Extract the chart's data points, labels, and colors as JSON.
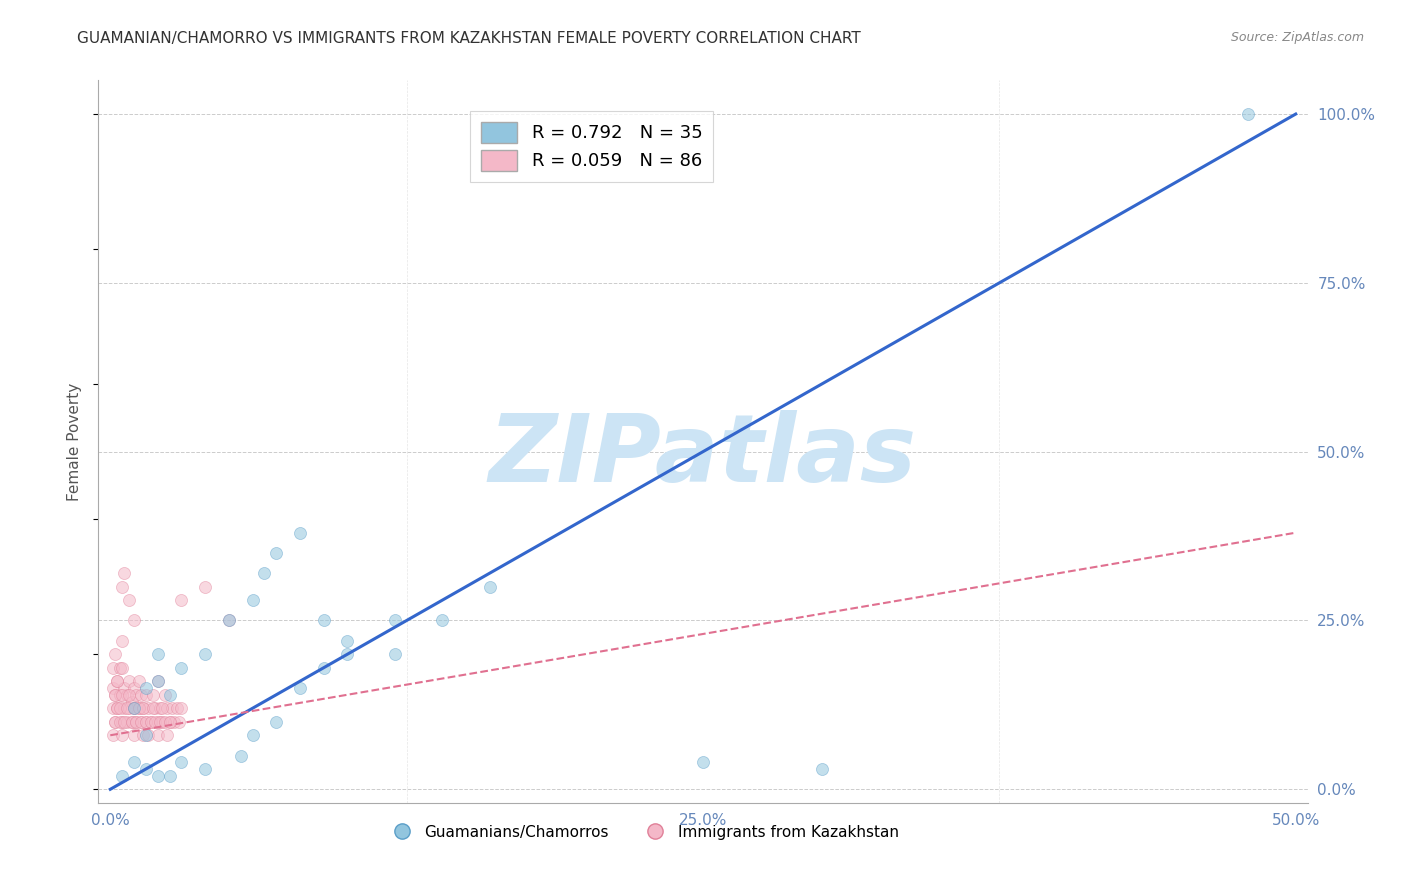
{
  "title": "GUAMANIAN/CHAMORRO VS IMMIGRANTS FROM KAZAKHSTAN FEMALE POVERTY CORRELATION CHART",
  "source": "Source: ZipAtlas.com",
  "ylabel": "Female Poverty",
  "xlim": [
    -0.005,
    0.505
  ],
  "ylim": [
    -0.02,
    1.05
  ],
  "xtick_labels": [
    "0.0%",
    "25.0%",
    "50.0%"
  ],
  "xtick_vals": [
    0.0,
    0.25,
    0.5
  ],
  "ytick_labels": [
    "0.0%",
    "25.0%",
    "50.0%",
    "75.0%",
    "100.0%"
  ],
  "ytick_vals": [
    0.0,
    0.25,
    0.5,
    0.75,
    1.0
  ],
  "group1_label": "Guamanians/Chamorros",
  "group1_color": "#92c5de",
  "group1_edge_color": "#5a9ec8",
  "group1_R": 0.792,
  "group1_N": 35,
  "group2_label": "Immigrants from Kazakhstan",
  "group2_color": "#f4b8c8",
  "group2_edge_color": "#e08098",
  "group2_R": 0.059,
  "group2_N": 86,
  "watermark": "ZIPatlas",
  "watermark_color": "#cce4f5",
  "background_color": "#ffffff",
  "grid_color": "#cccccc",
  "title_fontsize": 11,
  "tick_color": "#6688bb",
  "blue_line_x": [
    0.0,
    0.5
  ],
  "blue_line_y": [
    0.0,
    1.0
  ],
  "pink_line_x": [
    0.0,
    0.5
  ],
  "pink_line_y": [
    0.08,
    0.38
  ],
  "group1_x": [
    0.005,
    0.01,
    0.01,
    0.015,
    0.015,
    0.02,
    0.02,
    0.025,
    0.03,
    0.04,
    0.05,
    0.06,
    0.065,
    0.07,
    0.08,
    0.09,
    0.1,
    0.12,
    0.14,
    0.16,
    0.06,
    0.07,
    0.08,
    0.09,
    0.1,
    0.12,
    0.055,
    0.04,
    0.03,
    0.02,
    0.015,
    0.025,
    0.3,
    0.25,
    0.48
  ],
  "group1_y": [
    0.02,
    0.04,
    0.12,
    0.08,
    0.15,
    0.16,
    0.2,
    0.14,
    0.18,
    0.2,
    0.25,
    0.28,
    0.32,
    0.35,
    0.38,
    0.25,
    0.22,
    0.2,
    0.25,
    0.3,
    0.08,
    0.1,
    0.15,
    0.18,
    0.2,
    0.25,
    0.05,
    0.03,
    0.04,
    0.02,
    0.03,
    0.02,
    0.03,
    0.04,
    1.0
  ],
  "group2_x": [
    0.001,
    0.001,
    0.001,
    0.002,
    0.002,
    0.002,
    0.003,
    0.003,
    0.004,
    0.004,
    0.005,
    0.005,
    0.005,
    0.006,
    0.006,
    0.007,
    0.007,
    0.008,
    0.008,
    0.009,
    0.009,
    0.01,
    0.01,
    0.01,
    0.011,
    0.011,
    0.012,
    0.012,
    0.013,
    0.013,
    0.014,
    0.014,
    0.015,
    0.015,
    0.016,
    0.017,
    0.018,
    0.019,
    0.02,
    0.02,
    0.021,
    0.022,
    0.023,
    0.024,
    0.025,
    0.026,
    0.027,
    0.028,
    0.029,
    0.03,
    0.001,
    0.002,
    0.002,
    0.003,
    0.003,
    0.004,
    0.004,
    0.005,
    0.005,
    0.006,
    0.007,
    0.008,
    0.009,
    0.01,
    0.011,
    0.012,
    0.013,
    0.014,
    0.015,
    0.016,
    0.017,
    0.018,
    0.019,
    0.02,
    0.021,
    0.022,
    0.023,
    0.024,
    0.025,
    0.005,
    0.03,
    0.04,
    0.05,
    0.006,
    0.008,
    0.01
  ],
  "group2_y": [
    0.12,
    0.15,
    0.18,
    0.1,
    0.14,
    0.2,
    0.16,
    0.12,
    0.18,
    0.14,
    0.22,
    0.18,
    0.1,
    0.15,
    0.12,
    0.14,
    0.1,
    0.16,
    0.12,
    0.13,
    0.1,
    0.15,
    0.12,
    0.08,
    0.14,
    0.1,
    0.16,
    0.12,
    0.14,
    0.1,
    0.12,
    0.08,
    0.14,
    0.1,
    0.12,
    0.1,
    0.14,
    0.12,
    0.16,
    0.1,
    0.12,
    0.1,
    0.14,
    0.12,
    0.1,
    0.12,
    0.1,
    0.12,
    0.1,
    0.12,
    0.08,
    0.1,
    0.14,
    0.12,
    0.16,
    0.1,
    0.12,
    0.14,
    0.08,
    0.1,
    0.12,
    0.14,
    0.1,
    0.12,
    0.1,
    0.12,
    0.1,
    0.12,
    0.1,
    0.08,
    0.1,
    0.12,
    0.1,
    0.08,
    0.1,
    0.12,
    0.1,
    0.08,
    0.1,
    0.3,
    0.28,
    0.3,
    0.25,
    0.32,
    0.28,
    0.25
  ],
  "marker_size": 75
}
